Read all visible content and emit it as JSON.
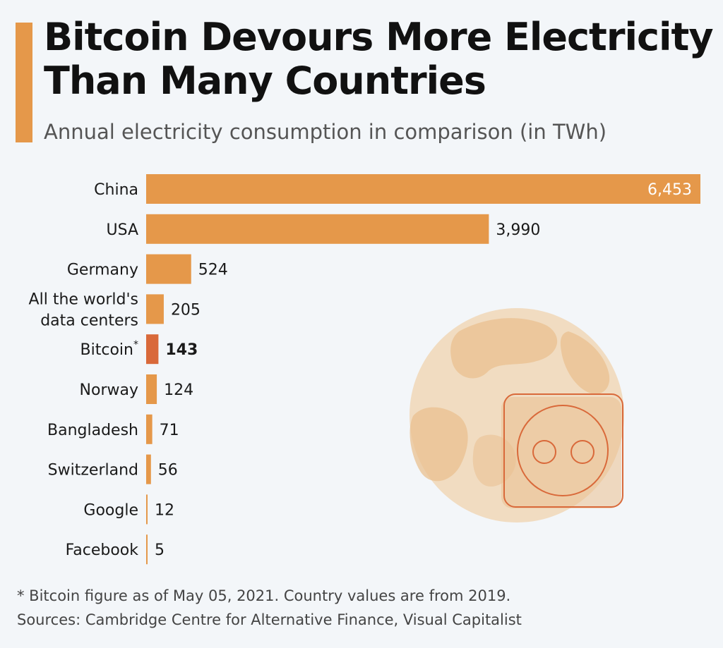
{
  "title_line1": "Bitcoin Devours More Electricity",
  "title_line2": "Than Many Countries",
  "subtitle": "Annual electricity consumption in comparison (in TWh)",
  "footnote": "* Bitcoin figure as of May 05, 2021. Country values are from 2019.",
  "sources": "Sources: Cambridge Centre for Alternative Finance, Visual Capitalist",
  "colors": {
    "bar": "#e5984a",
    "highlight": "#d9693a",
    "background": "#f3f6f9",
    "illustration_light": "#f1dcc1",
    "illustration_mid": "#e9c08f",
    "illustration_line": "#d9693a"
  },
  "illustration_icons": [
    "globe-icon",
    "power-socket-icon"
  ],
  "chart_data": {
    "type": "bar",
    "orientation": "horizontal",
    "categories": [
      "China",
      "USA",
      "Germany",
      "All the world's data centers",
      "Bitcoin*",
      "Norway",
      "Bangladesh",
      "Switzerland",
      "Google",
      "Facebook"
    ],
    "category_lines": [
      [
        "China"
      ],
      [
        "USA"
      ],
      [
        "Germany"
      ],
      [
        "All the world's",
        "data centers"
      ],
      [
        "Bitcoin*"
      ],
      [
        "Norway"
      ],
      [
        "Bangladesh"
      ],
      [
        "Switzerland"
      ],
      [
        "Google"
      ],
      [
        "Facebook"
      ]
    ],
    "values": [
      6453,
      3990,
      524,
      205,
      143,
      124,
      71,
      56,
      12,
      5
    ],
    "value_labels": [
      "6,453",
      "3,990",
      "524",
      "205",
      "143",
      "124",
      "71",
      "56",
      "12",
      "5"
    ],
    "highlight": "Bitcoin*",
    "xlim": [
      0,
      6453
    ],
    "grid": false,
    "legend": "none",
    "value_label_position": "end (inside for largest bar)"
  }
}
